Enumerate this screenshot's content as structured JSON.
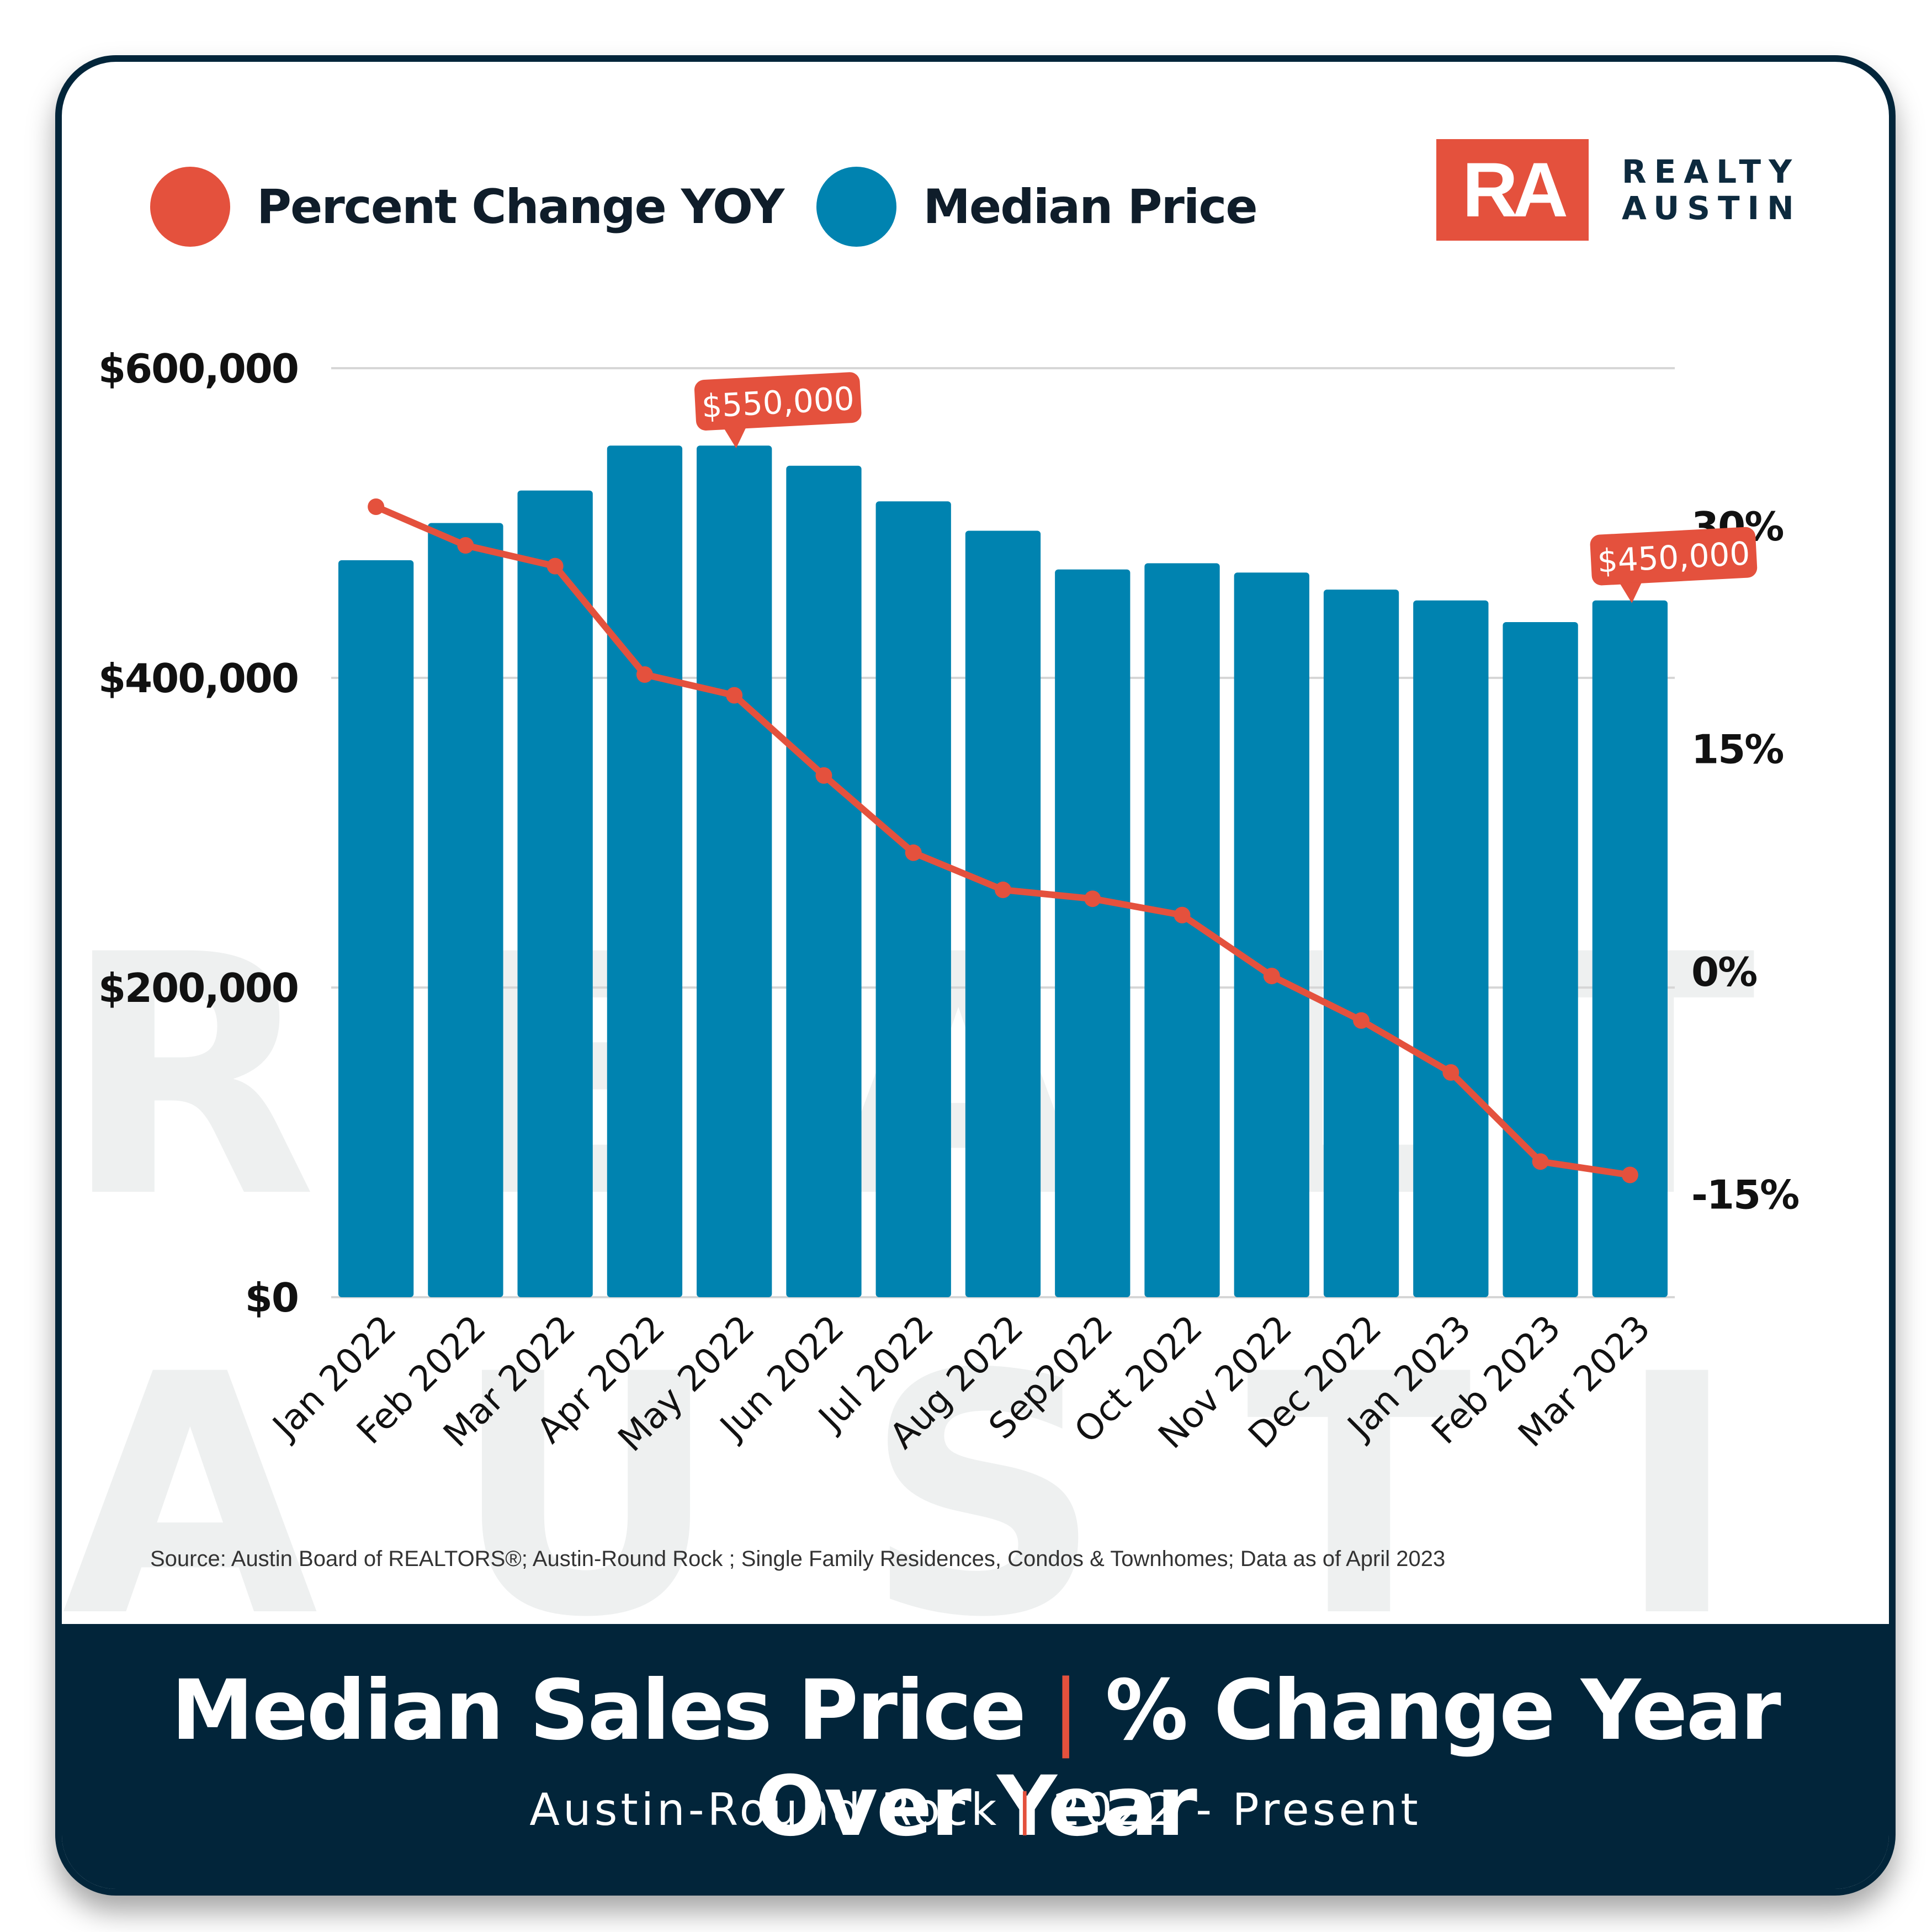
{
  "legend": [
    {
      "label": "Percent Change YOY",
      "color": "#e4513d"
    },
    {
      "label": "Median Price",
      "color": "#0083b0"
    }
  ],
  "logo": {
    "mark": "RA",
    "line1": "REALTY",
    "line2": "AUSTIN"
  },
  "watermark": {
    "line1": "REALTY",
    "line2": "AUSTIN"
  },
  "source": "Source: Austin Board of REALTORS®; Austin-Round Rock ; Single Family Residences, Condos & Townhomes; Data as of April 2023",
  "banner": {
    "title_left": "Median Sales Price",
    "title_sep": "|",
    "title_right": "% Change Year Over Year",
    "sub_left": "Austin-Round Rock",
    "sub_sep": "|",
    "sub_right": "2022 - Present"
  },
  "colors": {
    "bar": "#0083b0",
    "line": "#e4513d",
    "navy": "#02253a"
  },
  "chart_data": {
    "type": "bar",
    "title": "Median Sales Price | % Change Year Over Year",
    "subtitle": "Austin-Round Rock | 2022 - Present",
    "categories": [
      "Jan 2022",
      "Feb 2022",
      "Mar 2022",
      "Apr 2022",
      "May 2022",
      "Jun 2022",
      "Jul 2022",
      "Aug 2022",
      "Sep2022",
      "Oct 2022",
      "Nov 2022",
      "Dec 2022",
      "Jan 2023",
      "Feb 2023",
      "Mar 2023"
    ],
    "series": [
      {
        "name": "Median Price",
        "type": "bar",
        "axis": "left",
        "values": [
          476000,
          500000,
          521000,
          550000,
          550000,
          537000,
          514000,
          495000,
          470000,
          474000,
          468000,
          457000,
          450000,
          436000,
          450000
        ]
      },
      {
        "name": "Percent Change YOY",
        "type": "line",
        "axis": "right",
        "values": [
          31.3,
          28.7,
          27.3,
          20.0,
          18.6,
          13.2,
          8.0,
          5.5,
          4.9,
          3.8,
          -0.3,
          -3.3,
          -6.8,
          -12.8,
          -13.7
        ]
      }
    ],
    "left_axis": {
      "ylim": [
        0,
        600000
      ],
      "ticks": [
        0,
        200000,
        400000,
        600000
      ],
      "tick_labels": [
        "$0",
        "$200,000",
        "$400,000",
        "$600,000"
      ]
    },
    "right_axis": {
      "ticks": [
        30,
        15,
        0,
        -15
      ],
      "tick_labels": [
        "30%",
        "15%",
        "0%",
        "-15%"
      ]
    },
    "annotations": [
      {
        "category": "May 2022",
        "label": "$550,000"
      },
      {
        "category": "Mar 2023",
        "label": "$450,000"
      }
    ],
    "grid": true,
    "legend_position": "top-left",
    "xlabel": "",
    "ylabel": ""
  }
}
